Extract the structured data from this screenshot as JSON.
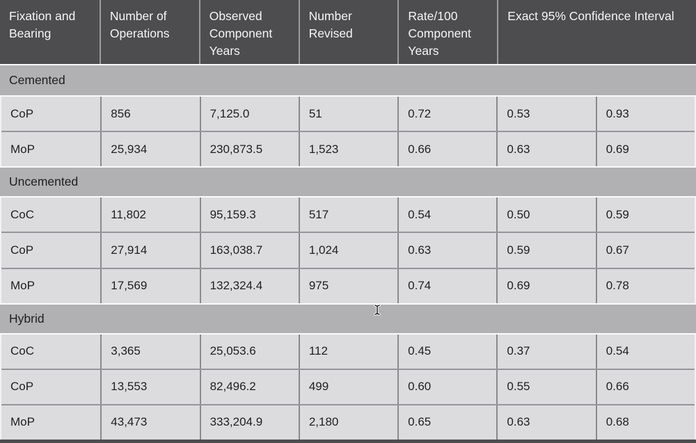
{
  "table": {
    "columns": [
      "Fixation and Bearing",
      "Number of Operations",
      "Observed Component Years",
      "Number Revised",
      "Rate/100 Component Years",
      "Exact 95% Confidence Interval"
    ],
    "sections": [
      {
        "label": "Cemented",
        "rows": [
          {
            "bearing": "CoP",
            "operations": "856",
            "component_years": "7,125.0",
            "revised": "51",
            "rate": "0.72",
            "ci_lower": "0.53",
            "ci_upper": "0.93"
          },
          {
            "bearing": "MoP",
            "operations": "25,934",
            "component_years": "230,873.5",
            "revised": "1,523",
            "rate": "0.66",
            "ci_lower": "0.63",
            "ci_upper": "0.69"
          }
        ]
      },
      {
        "label": "Uncemented",
        "rows": [
          {
            "bearing": "CoC",
            "operations": "11,802",
            "component_years": "95,159.3",
            "revised": "517",
            "rate": "0.54",
            "ci_lower": "0.50",
            "ci_upper": "0.59"
          },
          {
            "bearing": "CoP",
            "operations": "27,914",
            "component_years": "163,038.7",
            "revised": "1,024",
            "rate": "0.63",
            "ci_lower": "0.59",
            "ci_upper": "0.67"
          },
          {
            "bearing": "MoP",
            "operations": "17,569",
            "component_years": "132,324.4",
            "revised": "975",
            "rate": "0.74",
            "ci_lower": "0.69",
            "ci_upper": "0.78"
          }
        ]
      },
      {
        "label": "Hybrid",
        "rows": [
          {
            "bearing": "CoC",
            "operations": "3,365",
            "component_years": "25,053.6",
            "revised": "112",
            "rate": "0.45",
            "ci_lower": "0.37",
            "ci_upper": "0.54"
          },
          {
            "bearing": "CoP",
            "operations": "13,553",
            "component_years": "82,496.2",
            "revised": "499",
            "rate": "0.60",
            "ci_lower": "0.55",
            "ci_upper": "0.66"
          },
          {
            "bearing": "MoP",
            "operations": "43,473",
            "component_years": "333,204.9",
            "revised": "2,180",
            "rate": "0.65",
            "ci_lower": "0.63",
            "ci_upper": "0.68"
          }
        ]
      }
    ]
  },
  "cursor": {
    "type": "text-ibeam"
  },
  "colors": {
    "header_bg": "#4d4d4f",
    "header_text": "#f5f5f5",
    "header_divider": "#9c9c9e",
    "section_bg": "#b1b1b3",
    "row_bg": "#dcdcde",
    "cell_divider": "#8a8a8c",
    "row_divider": "#96969a",
    "white_separator": "#fafafa",
    "body_text": "#1f1f1f"
  }
}
